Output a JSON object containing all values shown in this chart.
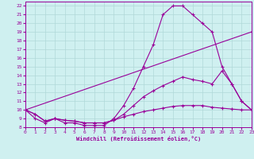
{
  "xlabel": "Windchill (Refroidissement éolien,°C)",
  "bg_color": "#cff0f0",
  "grid_color": "#b0d8d8",
  "line_color": "#990099",
  "xmin": 0,
  "xmax": 23,
  "ymin": 8,
  "ymax": 22.5,
  "yticks": [
    8,
    9,
    10,
    11,
    12,
    13,
    14,
    15,
    16,
    17,
    18,
    19,
    20,
    21,
    22
  ],
  "xticks": [
    0,
    1,
    2,
    3,
    4,
    5,
    6,
    7,
    8,
    9,
    10,
    11,
    12,
    13,
    14,
    15,
    16,
    17,
    18,
    19,
    20,
    21,
    22,
    23
  ],
  "lines": [
    {
      "x": [
        0,
        1,
        2,
        3,
        4,
        5,
        6,
        7,
        8,
        9,
        10,
        11,
        12,
        13,
        14,
        15,
        16,
        17,
        18,
        19,
        20,
        21,
        22,
        23
      ],
      "y": [
        10,
        9,
        8.5,
        9,
        8.5,
        8.5,
        8.2,
        8.2,
        8.2,
        9.0,
        10.5,
        12.5,
        15.0,
        17.5,
        21.0,
        22.0,
        22.0,
        21.0,
        20.0,
        19.0,
        15.0,
        13.0,
        11.0,
        10.0
      ]
    },
    {
      "x": [
        0,
        23
      ],
      "y": [
        10,
        19
      ]
    },
    {
      "x": [
        0,
        1,
        2,
        3,
        4,
        5,
        6,
        7,
        8,
        9,
        10,
        11,
        12,
        13,
        14,
        15,
        16,
        17,
        18,
        19,
        20,
        21,
        22,
        23
      ],
      "y": [
        10,
        9.5,
        8.7,
        9.0,
        8.8,
        8.7,
        8.5,
        8.5,
        8.5,
        8.8,
        9.5,
        10.5,
        11.5,
        12.2,
        12.8,
        13.3,
        13.8,
        13.5,
        13.3,
        13.0,
        14.5,
        13.0,
        11.0,
        10.0
      ]
    },
    {
      "x": [
        0,
        1,
        2,
        3,
        4,
        5,
        6,
        7,
        8,
        9,
        10,
        11,
        12,
        13,
        14,
        15,
        16,
        17,
        18,
        19,
        20,
        21,
        22,
        23
      ],
      "y": [
        10,
        9.5,
        8.7,
        9.0,
        8.8,
        8.7,
        8.5,
        8.5,
        8.5,
        8.8,
        9.2,
        9.5,
        9.8,
        10.0,
        10.2,
        10.4,
        10.5,
        10.5,
        10.5,
        10.3,
        10.2,
        10.1,
        10.0,
        10.0
      ]
    }
  ]
}
